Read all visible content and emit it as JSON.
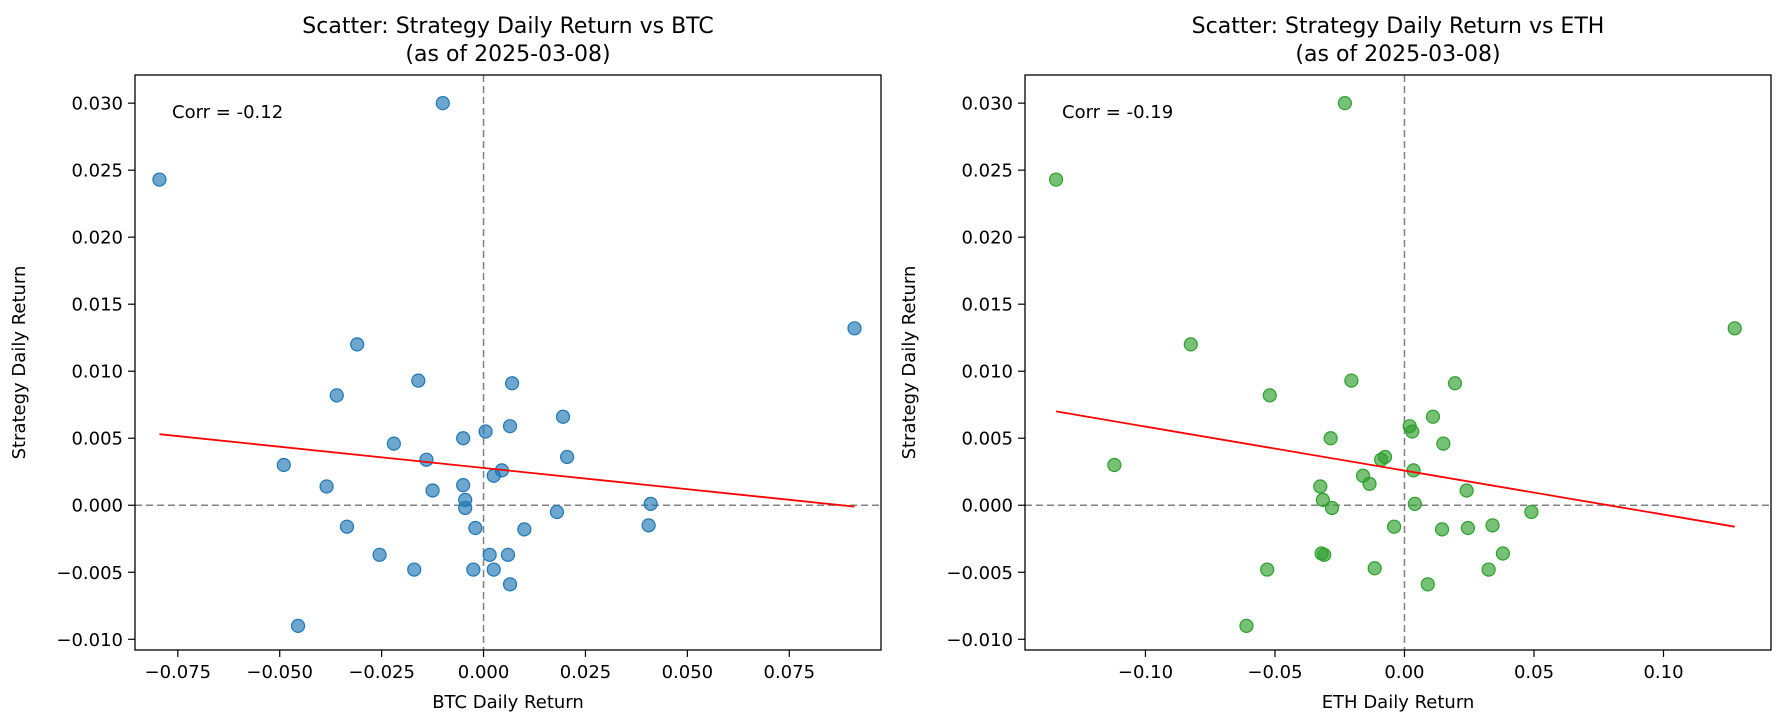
{
  "chart_data": [
    {
      "type": "scatter",
      "title": "Scatter: Strategy Daily Return vs BTC",
      "subtitle": "(as of 2025-03-08)",
      "xlabel": "BTC Daily Return",
      "ylabel": "Strategy Daily Return",
      "annotation": "Corr = -0.12",
      "xlim": [
        -0.0855,
        0.0975
      ],
      "ylim": [
        -0.0108,
        0.0321
      ],
      "xticks": [
        -0.075,
        -0.05,
        -0.025,
        0.0,
        0.025,
        0.05,
        0.075
      ],
      "xtick_labels": [
        "−0.075",
        "−0.050",
        "−0.025",
        "0.000",
        "0.025",
        "0.050",
        "0.075"
      ],
      "yticks": [
        -0.01,
        -0.005,
        0.0,
        0.005,
        0.01,
        0.015,
        0.02,
        0.025,
        0.03
      ],
      "ytick_labels": [
        "−0.010",
        "−0.005",
        "0.000",
        "0.005",
        "0.010",
        "0.015",
        "0.020",
        "0.025",
        "0.030"
      ],
      "point_color": "#1f77b4",
      "fit_color": "#ff0000",
      "reference_line_color": "#808080",
      "grid": false,
      "fit_line": {
        "x": [
          -0.0795,
          0.091
        ],
        "y": [
          0.0053,
          -0.0001
        ]
      },
      "points": [
        {
          "x": -0.0795,
          "y": 0.0243
        },
        {
          "x": -0.01,
          "y": 0.03
        },
        {
          "x": 0.091,
          "y": 0.0132
        },
        {
          "x": -0.031,
          "y": 0.012
        },
        {
          "x": -0.016,
          "y": 0.0093
        },
        {
          "x": 0.007,
          "y": 0.0091
        },
        {
          "x": -0.036,
          "y": 0.0082
        },
        {
          "x": 0.0195,
          "y": 0.0066
        },
        {
          "x": 0.0065,
          "y": 0.0059
        },
        {
          "x": 0.0005,
          "y": 0.0055
        },
        {
          "x": -0.005,
          "y": 0.005
        },
        {
          "x": -0.022,
          "y": 0.0046
        },
        {
          "x": 0.0205,
          "y": 0.0036
        },
        {
          "x": -0.014,
          "y": 0.0034
        },
        {
          "x": -0.049,
          "y": 0.003
        },
        {
          "x": 0.0045,
          "y": 0.0026
        },
        {
          "x": 0.0025,
          "y": 0.0022
        },
        {
          "x": -0.0385,
          "y": 0.0014
        },
        {
          "x": -0.005,
          "y": 0.0015
        },
        {
          "x": -0.0125,
          "y": 0.0011
        },
        {
          "x": -0.0045,
          "y": 0.0004
        },
        {
          "x": 0.041,
          "y": 0.0001
        },
        {
          "x": -0.0045,
          "y": -0.0002
        },
        {
          "x": 0.018,
          "y": -0.0005
        },
        {
          "x": 0.0405,
          "y": -0.0015
        },
        {
          "x": -0.0335,
          "y": -0.0016
        },
        {
          "x": -0.002,
          "y": -0.0017
        },
        {
          "x": 0.01,
          "y": -0.0018
        },
        {
          "x": -0.0255,
          "y": -0.0037
        },
        {
          "x": 0.0015,
          "y": -0.0037
        },
        {
          "x": 0.006,
          "y": -0.0037
        },
        {
          "x": -0.017,
          "y": -0.0048
        },
        {
          "x": -0.0025,
          "y": -0.0048
        },
        {
          "x": 0.0025,
          "y": -0.0048
        },
        {
          "x": 0.0065,
          "y": -0.0059
        },
        {
          "x": -0.0455,
          "y": -0.009
        }
      ]
    },
    {
      "type": "scatter",
      "title": "Scatter: Strategy Daily Return vs ETH",
      "subtitle": "(as of 2025-03-08)",
      "xlabel": "ETH Daily Return",
      "ylabel": "Strategy Daily Return",
      "annotation": "Corr = -0.19",
      "xlim": [
        -0.1465,
        0.1415
      ],
      "ylim": [
        -0.0108,
        0.0321
      ],
      "xticks": [
        -0.1,
        -0.05,
        0.0,
        0.05,
        0.1
      ],
      "xtick_labels": [
        "−0.10",
        "−0.05",
        "0.00",
        "0.05",
        "0.10"
      ],
      "yticks": [
        -0.01,
        -0.005,
        0.0,
        0.005,
        0.01,
        0.015,
        0.02,
        0.025,
        0.03
      ],
      "ytick_labels": [
        "−0.010",
        "−0.005",
        "0.000",
        "0.005",
        "0.010",
        "0.015",
        "0.020",
        "0.025",
        "0.030"
      ],
      "point_color": "#2ca02c",
      "fit_color": "#ff0000",
      "reference_line_color": "#808080",
      "grid": false,
      "fit_line": {
        "x": [
          -0.1345,
          0.1275
        ],
        "y": [
          0.007,
          -0.0016
        ]
      },
      "points": [
        {
          "x": -0.1345,
          "y": 0.0243
        },
        {
          "x": -0.023,
          "y": 0.03
        },
        {
          "x": 0.1275,
          "y": 0.0132
        },
        {
          "x": -0.0825,
          "y": 0.012
        },
        {
          "x": -0.0205,
          "y": 0.0093
        },
        {
          "x": 0.0195,
          "y": 0.0091
        },
        {
          "x": -0.052,
          "y": 0.0082
        },
        {
          "x": 0.011,
          "y": 0.0066
        },
        {
          "x": 0.002,
          "y": 0.0059
        },
        {
          "x": 0.003,
          "y": 0.0055
        },
        {
          "x": -0.0285,
          "y": 0.005
        },
        {
          "x": 0.015,
          "y": 0.0046
        },
        {
          "x": -0.0075,
          "y": 0.0036
        },
        {
          "x": -0.009,
          "y": 0.0034
        },
        {
          "x": -0.112,
          "y": 0.003
        },
        {
          "x": 0.0035,
          "y": 0.0026
        },
        {
          "x": -0.016,
          "y": 0.0022
        },
        {
          "x": -0.0135,
          "y": 0.0016
        },
        {
          "x": -0.0325,
          "y": 0.0014
        },
        {
          "x": 0.024,
          "y": 0.0011
        },
        {
          "x": -0.0315,
          "y": 0.0004
        },
        {
          "x": 0.004,
          "y": 0.0001
        },
        {
          "x": -0.028,
          "y": -0.0002
        },
        {
          "x": 0.049,
          "y": -0.0005
        },
        {
          "x": 0.034,
          "y": -0.0015
        },
        {
          "x": -0.004,
          "y": -0.0016
        },
        {
          "x": 0.0245,
          "y": -0.0017
        },
        {
          "x": 0.0145,
          "y": -0.0018
        },
        {
          "x": -0.032,
          "y": -0.0036
        },
        {
          "x": -0.031,
          "y": -0.0037
        },
        {
          "x": 0.038,
          "y": -0.0036
        },
        {
          "x": -0.053,
          "y": -0.0048
        },
        {
          "x": -0.0115,
          "y": -0.0047
        },
        {
          "x": 0.0325,
          "y": -0.0048
        },
        {
          "x": 0.009,
          "y": -0.0059
        },
        {
          "x": -0.061,
          "y": -0.009
        }
      ]
    }
  ]
}
